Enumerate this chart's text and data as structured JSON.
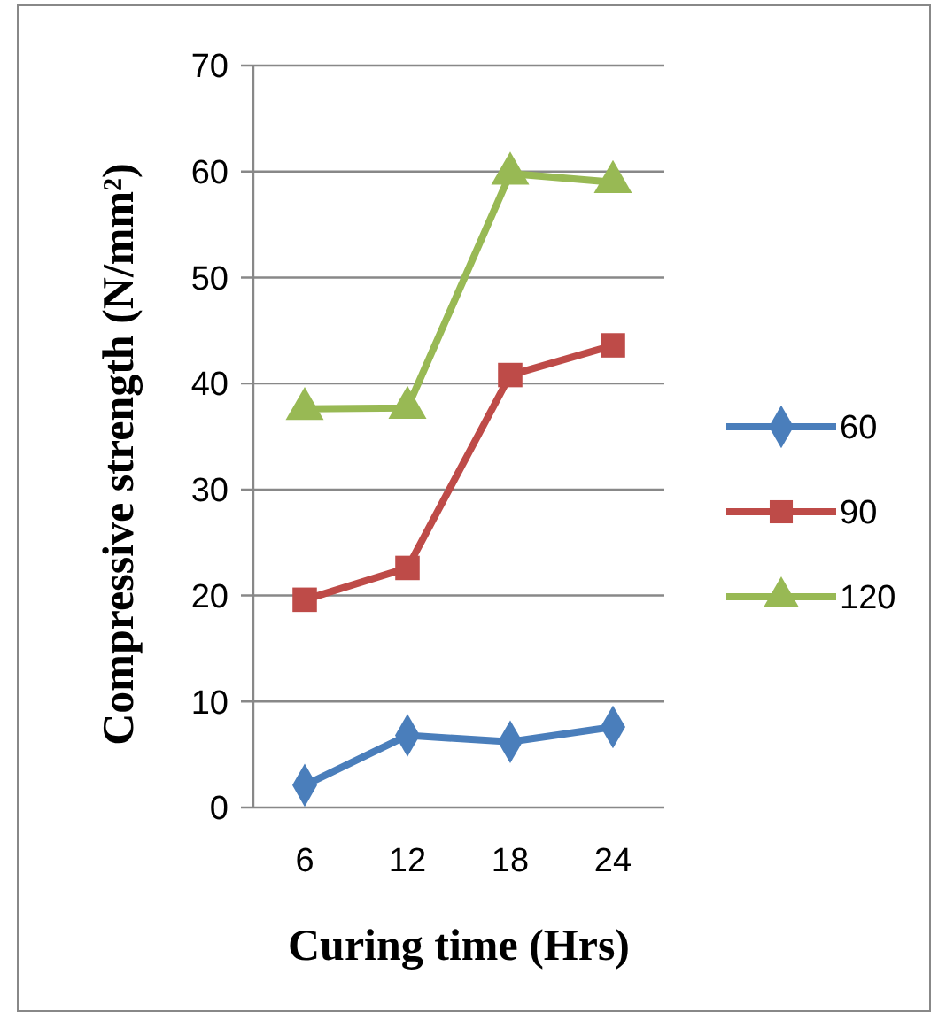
{
  "chart_data": {
    "type": "line",
    "xlabel": "Curing time (Hrs)",
    "ylabel": "Compressive strength (N/mm²)",
    "categories": [
      "6",
      "12",
      "18",
      "24"
    ],
    "ylim": [
      0,
      70
    ],
    "yticks": [
      0,
      10,
      20,
      30,
      40,
      50,
      60,
      70
    ],
    "grid": "y",
    "legend": "right",
    "series": [
      {
        "name": "60",
        "color": "#4a7ebb",
        "marker": "diamond",
        "values": [
          2.1,
          6.8,
          6.2,
          7.6
        ]
      },
      {
        "name": "90",
        "color": "#be4b48",
        "marker": "square",
        "values": [
          19.6,
          22.6,
          40.8,
          43.6
        ]
      },
      {
        "name": "120",
        "color": "#98b954",
        "marker": "triangle",
        "values": [
          37.6,
          37.7,
          59.8,
          59.0
        ]
      }
    ]
  }
}
